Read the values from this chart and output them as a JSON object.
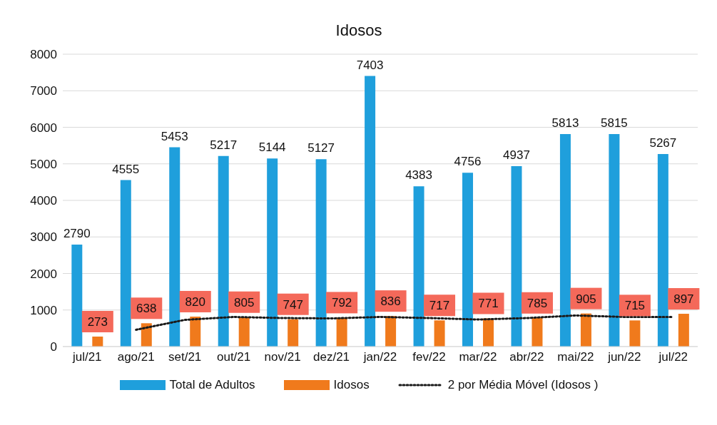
{
  "chart_data": {
    "type": "bar",
    "title": "Idosos",
    "categories": [
      "jul/21",
      "ago/21",
      "set/21",
      "out/21",
      "nov/21",
      "dez/21",
      "jan/22",
      "fev/22",
      "mar/22",
      "abr/22",
      "mai/22",
      "jun/22",
      "jul/22"
    ],
    "series": [
      {
        "name": "Total de Adultos",
        "color": "#1f9fdc",
        "values": [
          2790,
          4555,
          5453,
          5217,
          5144,
          5127,
          7403,
          4383,
          4756,
          4937,
          5813,
          5815,
          5267
        ],
        "value_labels": [
          "2790",
          "4555",
          "5453",
          "5217",
          "5144",
          "5127",
          "7403",
          "4383",
          "4756",
          "4937",
          "5813",
          "5815",
          "5267"
        ]
      },
      {
        "name": "Idosos",
        "color": "#f07a1c",
        "values": [
          273,
          638,
          820,
          805,
          747,
          792,
          836,
          717,
          771,
          785,
          905,
          715,
          897
        ],
        "value_labels": [
          "273",
          "638",
          "820",
          "805",
          "747",
          "792",
          "836",
          "717",
          "771",
          "785",
          "905",
          "715",
          "897"
        ]
      },
      {
        "name": "2 por Média Móvel (Idosos )",
        "type": "line",
        "color": "#1a1a1a",
        "line_style": "dotted",
        "marker": "none",
        "values": [
          null,
          460,
          730,
          810,
          780,
          770,
          810,
          780,
          740,
          780,
          850,
          810,
          810
        ]
      }
    ],
    "ylim": [
      0,
      8000
    ],
    "yticks": [
      0,
      1000,
      2000,
      3000,
      4000,
      5000,
      6000,
      7000,
      8000
    ],
    "grid": "y",
    "legend": "bottom"
  }
}
